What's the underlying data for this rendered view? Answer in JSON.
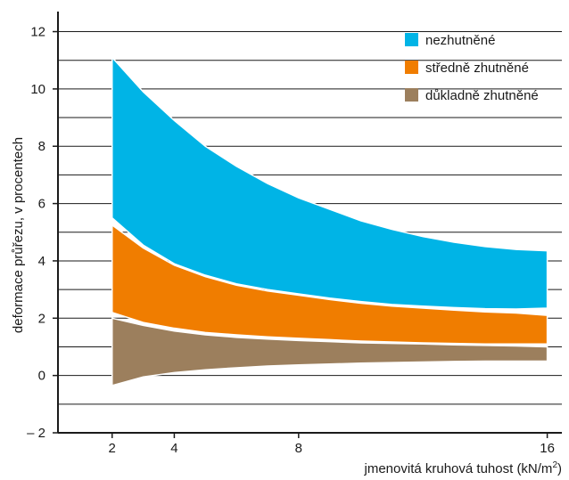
{
  "chart_data": {
    "type": "area",
    "xlabel": "jmenovitá kruhová tuhost (kN/m",
    "xlabel_sup": "2",
    "xlabel_end": ")",
    "ylabel": "deformace průřezu, v procentech",
    "xticks": [
      2,
      4,
      8,
      16
    ],
    "xtick_labels": [
      "2",
      "4",
      "8",
      "16"
    ],
    "yticks": [
      -2,
      0,
      2,
      4,
      6,
      8,
      10,
      12
    ],
    "ytick_labels": [
      "– 2",
      "0",
      "2",
      "4",
      "6",
      "8",
      "10",
      "12"
    ],
    "xlim": [
      0.2,
      16.7
    ],
    "ylim": [
      -2,
      12.7
    ],
    "x_scale": "linear",
    "grid": "horizontal lines every 1 unit",
    "legend_position": "top-right",
    "series": [
      {
        "name": "nezhutněné",
        "color": "#00b4e6",
        "x": [
          2,
          3,
          4,
          5,
          6,
          7,
          8,
          9,
          10,
          11,
          12,
          13,
          14,
          15,
          16
        ],
        "upper": [
          11.1,
          9.9,
          8.9,
          8.0,
          7.3,
          6.7,
          6.2,
          5.8,
          5.4,
          5.1,
          4.85,
          4.65,
          4.5,
          4.4,
          4.35
        ],
        "lower": [
          5.5,
          4.55,
          3.9,
          3.5,
          3.2,
          3.0,
          2.85,
          2.7,
          2.58,
          2.48,
          2.42,
          2.37,
          2.33,
          2.32,
          2.35
        ]
      },
      {
        "name": "středně zhutněné",
        "color": "#f07d00",
        "x": [
          2,
          3,
          4,
          5,
          6,
          7,
          8,
          9,
          10,
          11,
          12,
          13,
          14,
          15,
          16
        ],
        "upper": [
          5.25,
          4.45,
          3.85,
          3.45,
          3.15,
          2.95,
          2.8,
          2.65,
          2.52,
          2.42,
          2.35,
          2.28,
          2.22,
          2.18,
          2.1
        ],
        "lower": [
          2.2,
          1.85,
          1.65,
          1.5,
          1.42,
          1.35,
          1.3,
          1.25,
          1.2,
          1.17,
          1.14,
          1.12,
          1.1,
          1.1,
          1.1
        ]
      },
      {
        "name": "důkladně zhutněné",
        "color": "#9c7f5d",
        "x": [
          2,
          3,
          4,
          5,
          6,
          7,
          8,
          9,
          10,
          11,
          12,
          13,
          14,
          15,
          16
        ],
        "upper": [
          2.0,
          1.75,
          1.55,
          1.42,
          1.33,
          1.27,
          1.22,
          1.18,
          1.14,
          1.12,
          1.1,
          1.07,
          1.05,
          1.03,
          1.0
        ],
        "lower": [
          -0.35,
          -0.05,
          0.1,
          0.2,
          0.27,
          0.33,
          0.37,
          0.4,
          0.43,
          0.45,
          0.47,
          0.49,
          0.5,
          0.5,
          0.5
        ]
      }
    ]
  }
}
